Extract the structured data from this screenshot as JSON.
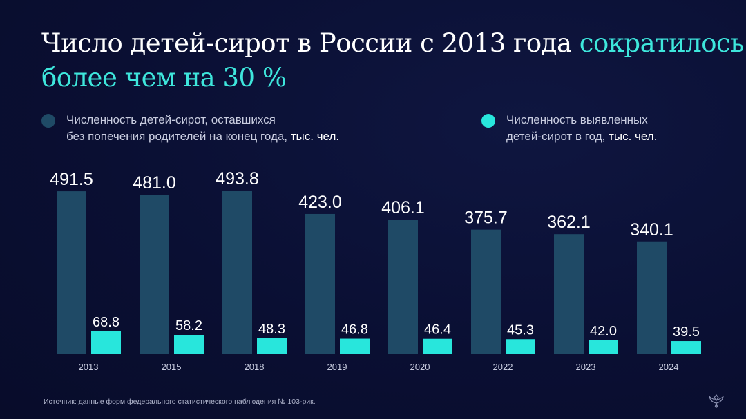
{
  "title": {
    "part1": "Число детей-сирот в России с 2013 года ",
    "highlight1": "сократилось",
    "highlight2": "более чем на 30 %"
  },
  "colors": {
    "dark_series": "#1f4a66",
    "light_series": "#28e6dc",
    "accent": "#3ee6dc"
  },
  "legend": [
    {
      "line1": "Численность детей-сирот, оставшихся",
      "line2": "без попечения родителей на конец года, ",
      "unit": "тыс. чел."
    },
    {
      "line1": "Численность выявленных",
      "line2": "детей-сирот в год, ",
      "unit": "тыс. чел."
    }
  ],
  "chart_data": {
    "type": "bar",
    "categories": [
      "2013",
      "2015",
      "2018",
      "2019",
      "2020",
      "2022",
      "2023",
      "2024"
    ],
    "series": [
      {
        "name": "Численность детей-сирот, оставшихся без попечения родителей на конец года, тыс. чел.",
        "values": [
          491.5,
          481.0,
          493.8,
          423.0,
          406.1,
          375.7,
          362.1,
          340.1
        ],
        "labels": [
          "491.5",
          "481.0",
          "493.8",
          "423.0",
          "406.1",
          "375.7",
          "362.1",
          "340.1"
        ]
      },
      {
        "name": "Численность выявленных детей-сирот в год, тыс. чел.",
        "values": [
          68.8,
          58.2,
          48.3,
          46.8,
          46.4,
          45.3,
          42.0,
          39.5
        ],
        "labels": [
          "68.8",
          "58.2",
          "48.3",
          "46.8",
          "46.4",
          "45.3",
          "42.0",
          "39.5"
        ]
      }
    ],
    "grid": false,
    "legend_position": "top"
  },
  "source": "Источник: данные форм федерального статистического наблюдения № 103-рик.",
  "emblem_icon": "double-headed-eagle-emblem"
}
